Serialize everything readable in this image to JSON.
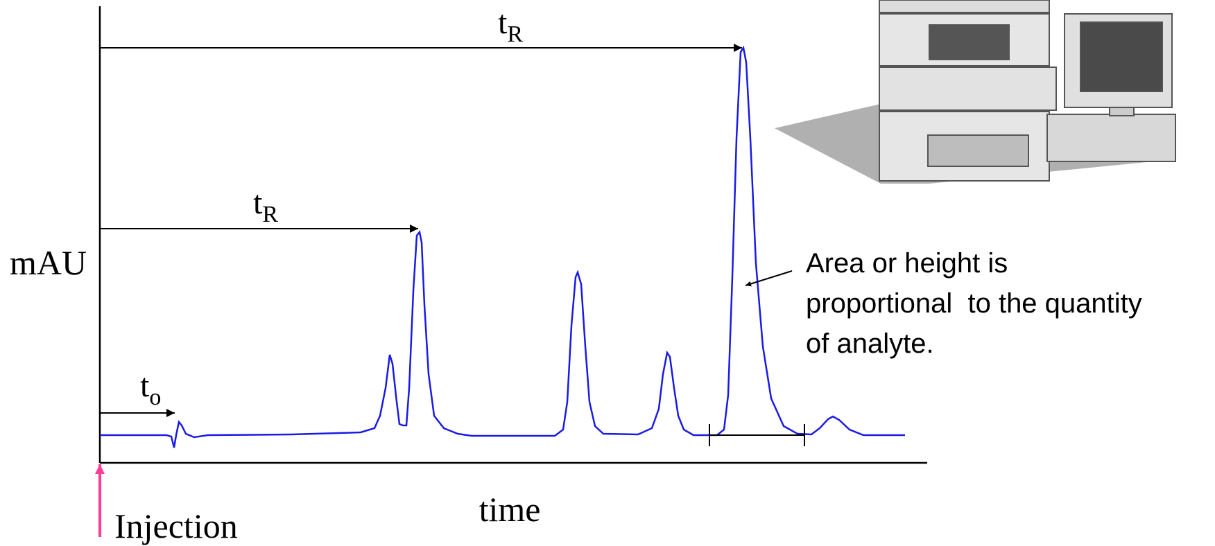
{
  "axes": {
    "y_label": "mAU",
    "x_label": "time"
  },
  "injection": "Injection",
  "markers": [
    {
      "symbol": "t",
      "subscript": "R"
    },
    {
      "symbol": "t",
      "subscript": "R"
    },
    {
      "symbol": "t",
      "subscript": "o"
    }
  ],
  "annotation": {
    "lines": [
      "Area or height is",
      "proportional  to the quantity",
      "of analyte."
    ]
  }
}
